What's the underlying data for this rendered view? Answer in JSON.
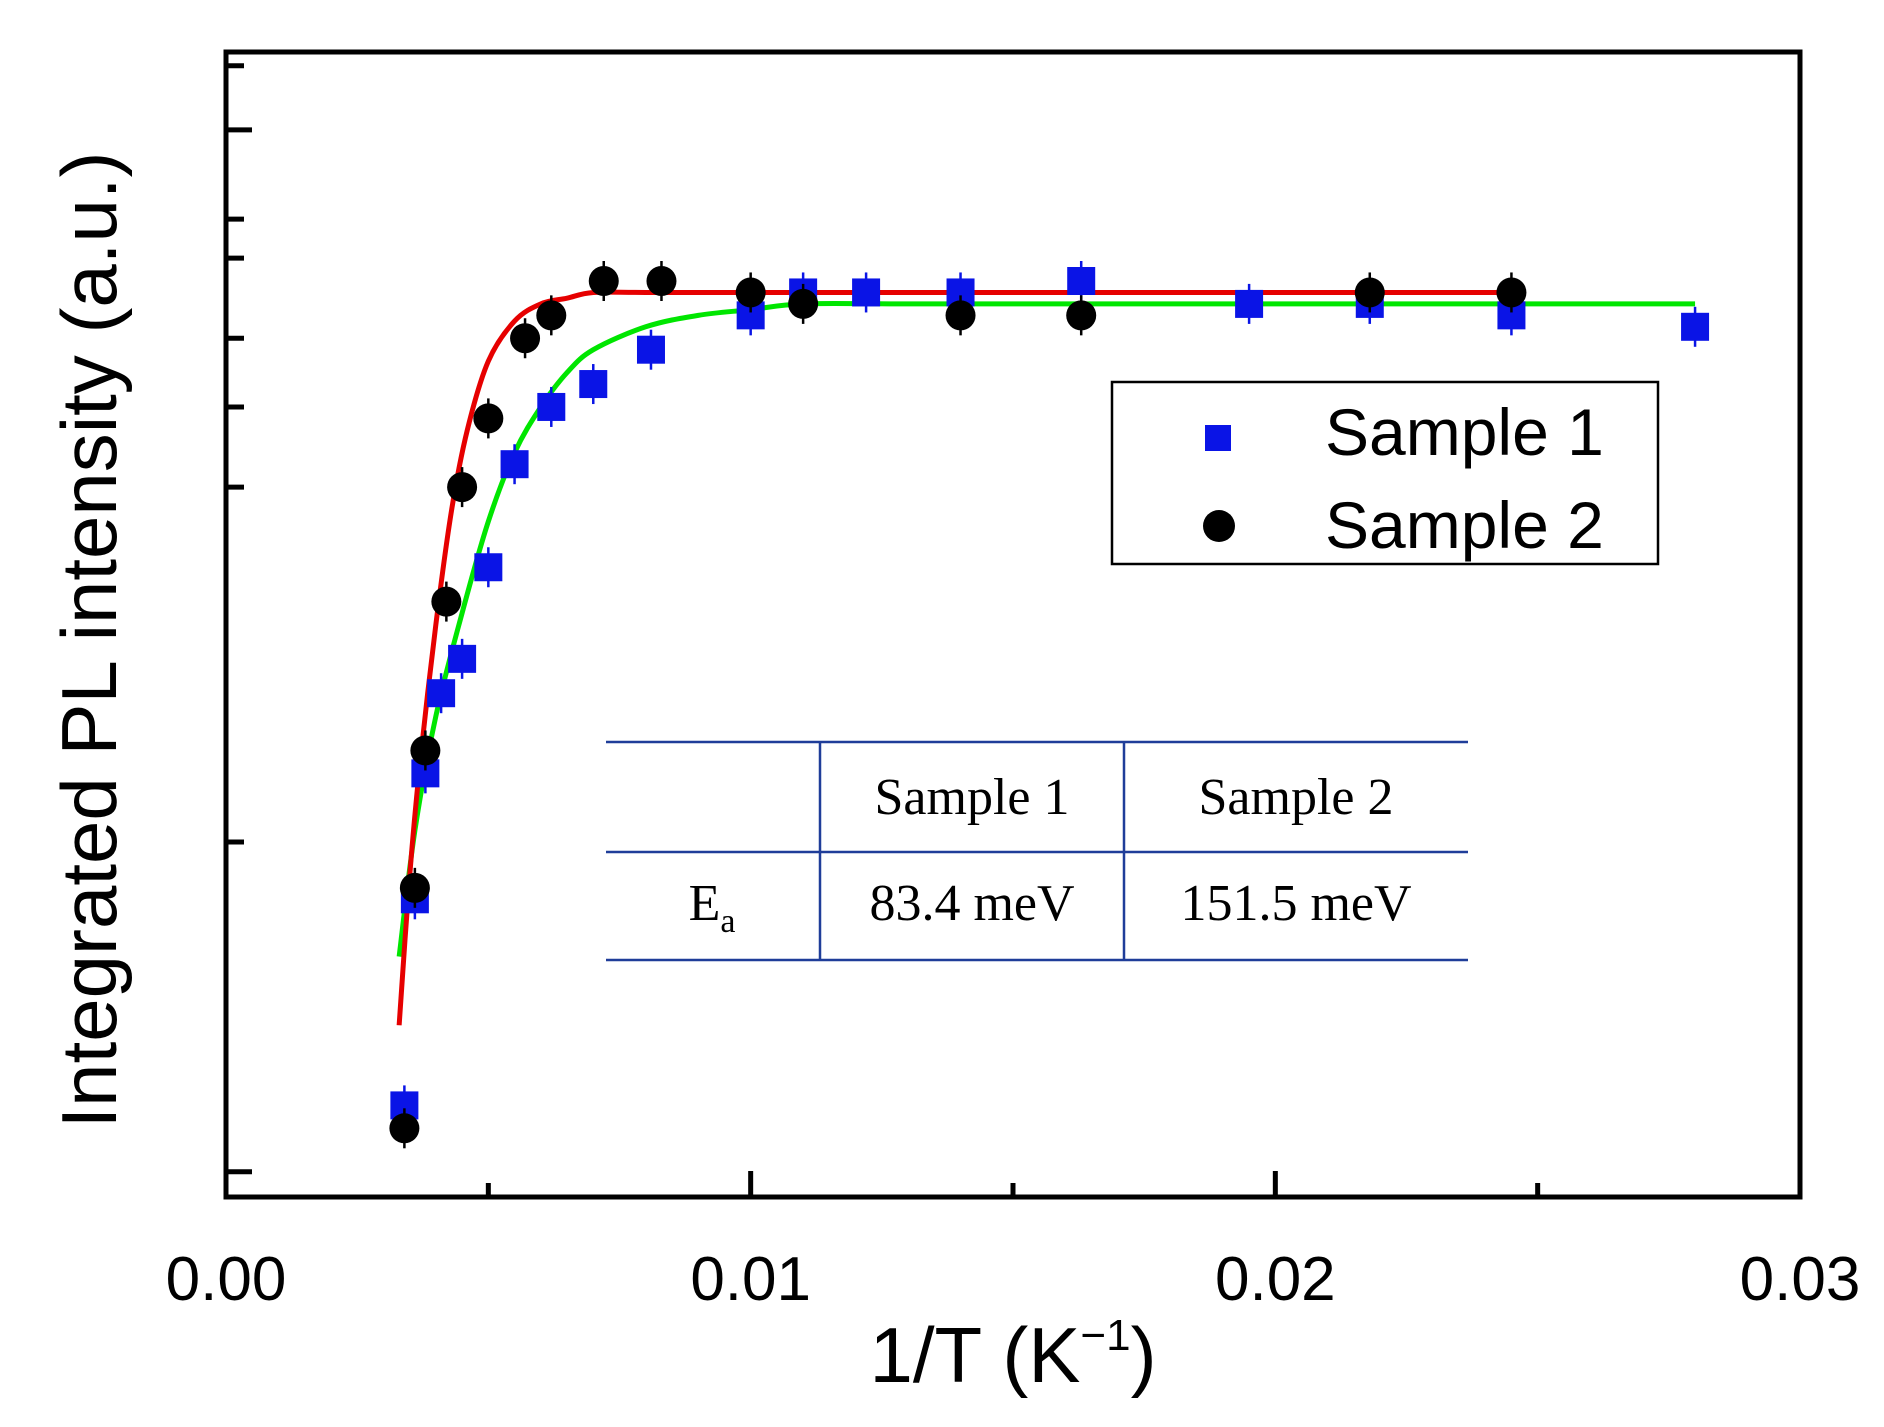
{
  "chart_data": {
    "type": "scatter",
    "title": "",
    "xlabel": "1/T (K",
    "xlabel_superscript": "−1",
    "xlabel_close": ")",
    "ylabel": "Integrated PL intensity (a.u.)",
    "xlim": [
      0.0,
      0.03
    ],
    "x_ticks": [
      0.0,
      0.01,
      0.02,
      0.03
    ],
    "x_tick_labels": [
      "0.00",
      "0.01",
      "0.02",
      "0.03"
    ],
    "ylim": [
      0.0,
      1.0
    ],
    "y_tick_values": [
      0.0,
      0.75,
      0.854,
      0.932,
      0.988
    ],
    "y_scale_note": "y axis has no numeric labels (arbitrary units)",
    "grid": false,
    "legend_position": "center-right",
    "series": [
      {
        "name": "Sample 1",
        "marker": "square",
        "color": "#0a14e6",
        "x": [
          0.0034,
          0.0036,
          0.0038,
          0.0041,
          0.0045,
          0.005,
          0.0055,
          0.0062,
          0.007,
          0.0081,
          0.01,
          0.011,
          0.0122,
          0.014,
          0.0163,
          0.0195,
          0.0218,
          0.0245,
          0.028
        ],
        "y": [
          0.08,
          0.26,
          0.37,
          0.44,
          0.47,
          0.55,
          0.64,
          0.69,
          0.71,
          0.74,
          0.77,
          0.79,
          0.79,
          0.79,
          0.8,
          0.78,
          0.78,
          0.77,
          0.76
        ]
      },
      {
        "name": "Sample 2",
        "marker": "circle",
        "color": "#000000",
        "x": [
          0.0034,
          0.0036,
          0.0038,
          0.0042,
          0.0045,
          0.005,
          0.0057,
          0.0062,
          0.0072,
          0.0083,
          0.01,
          0.011,
          0.014,
          0.0163,
          0.0218,
          0.0245
        ],
        "y": [
          0.06,
          0.27,
          0.39,
          0.52,
          0.62,
          0.68,
          0.75,
          0.77,
          0.8,
          0.8,
          0.79,
          0.78,
          0.77,
          0.77,
          0.79,
          0.79
        ]
      }
    ],
    "fits": [
      {
        "name": "Sample 1 fit",
        "color": "#00e600",
        "x": [
          0.0033,
          0.0036,
          0.004,
          0.0045,
          0.005,
          0.0055,
          0.006,
          0.0065,
          0.007,
          0.008,
          0.009,
          0.01,
          0.011,
          0.013,
          0.016,
          0.02,
          0.024,
          0.028
        ],
        "y": [
          0.21,
          0.32,
          0.42,
          0.51,
          0.59,
          0.65,
          0.69,
          0.72,
          0.74,
          0.76,
          0.77,
          0.775,
          0.78,
          0.78,
          0.78,
          0.78,
          0.78,
          0.78
        ]
      },
      {
        "name": "Sample 2 fit",
        "color": "#e60000",
        "x": [
          0.0033,
          0.0035,
          0.0037,
          0.004,
          0.0043,
          0.0046,
          0.005,
          0.0055,
          0.006,
          0.0065,
          0.007,
          0.008,
          0.01,
          0.015,
          0.02,
          0.0245
        ],
        "y": [
          0.15,
          0.28,
          0.38,
          0.5,
          0.6,
          0.67,
          0.73,
          0.765,
          0.78,
          0.785,
          0.79,
          0.79,
          0.79,
          0.79,
          0.79,
          0.79
        ]
      }
    ],
    "inset_table": {
      "headers": [
        "",
        "Sample 1",
        "Sample 2"
      ],
      "row_label": "E",
      "row_label_subscript": "a",
      "values": [
        "83.4 meV",
        "151.5 meV"
      ]
    }
  }
}
